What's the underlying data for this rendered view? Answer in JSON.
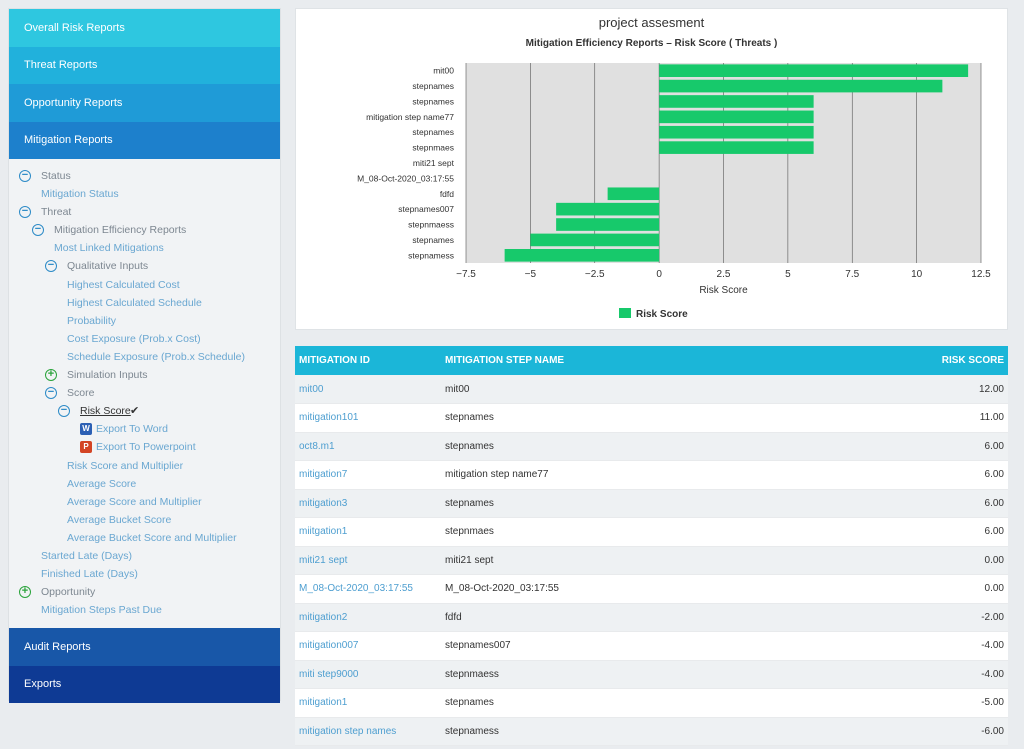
{
  "nav": {
    "top": [
      "Overall Risk Reports",
      "Threat Reports",
      "Opportunity Reports",
      "Mitigation Reports"
    ],
    "bottom": [
      "Audit Reports",
      "Exports"
    ]
  },
  "tree": [
    {
      "label": "Status",
      "toggle": "minus",
      "style": "gray"
    },
    {
      "label": "Mitigation Status",
      "toggle": null,
      "style": "link"
    },
    {
      "label": "Threat",
      "toggle": "minus",
      "style": "gray"
    },
    {
      "label": "Mitigation Efficiency Reports",
      "toggle": "minus",
      "style": "gray"
    },
    {
      "label": "Most Linked Mitigations",
      "toggle": null,
      "style": "link"
    },
    {
      "label": "Qualitative Inputs",
      "toggle": "minus",
      "style": "gray"
    },
    {
      "label": "Highest Calculated Cost",
      "toggle": null,
      "style": "link"
    },
    {
      "label": "Highest Calculated Schedule",
      "toggle": null,
      "style": "link"
    },
    {
      "label": "Probability",
      "toggle": null,
      "style": "link"
    },
    {
      "label": "Cost Exposure (Prob.x Cost)",
      "toggle": null,
      "style": "link"
    },
    {
      "label": "Schedule Exposure (Prob.x Schedule)",
      "toggle": null,
      "style": "link"
    },
    {
      "label": "Simulation Inputs",
      "toggle": "plus",
      "style": "gray"
    },
    {
      "label": "Score",
      "toggle": "minus",
      "style": "gray"
    },
    {
      "label": "Risk Score",
      "toggle": "minus",
      "style": "dark",
      "check": "✔"
    },
    {
      "label": "Export To Word",
      "toggle": null,
      "style": "link",
      "icon": "word-icon",
      "icon_glyph": "W"
    },
    {
      "label": "Export To Powerpoint",
      "toggle": null,
      "style": "link",
      "icon": "powerpoint-icon",
      "icon_glyph": "P"
    },
    {
      "label": "Risk Score and Multiplier",
      "toggle": null,
      "style": "link"
    },
    {
      "label": "Average Score",
      "toggle": null,
      "style": "link"
    },
    {
      "label": "Average Score and Multiplier",
      "toggle": null,
      "style": "link"
    },
    {
      "label": "Average Bucket Score",
      "toggle": null,
      "style": "link"
    },
    {
      "label": "Average Bucket Score and Multiplier",
      "toggle": null,
      "style": "link"
    },
    {
      "label": "Started Late (Days)",
      "toggle": null,
      "style": "link"
    },
    {
      "label": "Finished Late (Days)",
      "toggle": null,
      "style": "link"
    },
    {
      "label": "Opportunity",
      "toggle": "plus",
      "style": "gray"
    },
    {
      "label": "Mitigation Steps Past Due",
      "toggle": null,
      "style": "link"
    }
  ],
  "chart": {
    "title": "project assesment",
    "subtitle": "Mitigation Efficiency Reports – Risk Score ( Threats )",
    "bar_color": "#17c96b"
  },
  "chart_data": {
    "type": "bar",
    "orientation": "horizontal",
    "categories": [
      "mit00",
      "stepnames",
      "stepnames",
      "mitigation step name77",
      "stepnames",
      "stepnmaes",
      "miti21 sept",
      "M_08-Oct-2020_03:17:55",
      "fdfd",
      "stepnames007",
      "stepnmaess",
      "stepnames",
      "stepnamess"
    ],
    "series": [
      {
        "name": "Risk Score",
        "values": [
          12,
          11,
          6,
          6,
          6,
          6,
          0,
          0,
          -2,
          -4,
          -4,
          -5,
          -6
        ]
      }
    ],
    "xlabel": "Risk Score",
    "ylabel": "",
    "xlim": [
      -7.5,
      12.5
    ],
    "xticks": [
      "−7.5",
      "−5",
      "−2.5",
      "0",
      "2.5",
      "5",
      "7.5",
      "10",
      "12.5"
    ],
    "grid": true,
    "legend": "bottom"
  },
  "table": {
    "headers": [
      "MITIGATION ID",
      "MITIGATION STEP NAME",
      "RISK SCORE"
    ],
    "rows": [
      [
        "mit00",
        "mit00",
        "12.00"
      ],
      [
        "mitigation101",
        "stepnames",
        "11.00"
      ],
      [
        "oct8.m1",
        "stepnames",
        "6.00"
      ],
      [
        "mitigation7",
        "mitigation step name77",
        "6.00"
      ],
      [
        "mitigation3",
        "stepnames",
        "6.00"
      ],
      [
        "miitgation1",
        "stepnmaes",
        "6.00"
      ],
      [
        "miti21 sept",
        "miti21 sept",
        "0.00"
      ],
      [
        "M_08-Oct-2020_03:17:55",
        "M_08-Oct-2020_03:17:55",
        "0.00"
      ],
      [
        "mitigation2",
        "fdfd",
        "-2.00"
      ],
      [
        "mitigation007",
        "stepnames007",
        "-4.00"
      ],
      [
        "miti step9000",
        "stepnmaess",
        "-4.00"
      ],
      [
        "mitigation1",
        "stepnames",
        "-5.00"
      ],
      [
        "mitigation step names",
        "stepnamess",
        "-6.00"
      ]
    ]
  }
}
